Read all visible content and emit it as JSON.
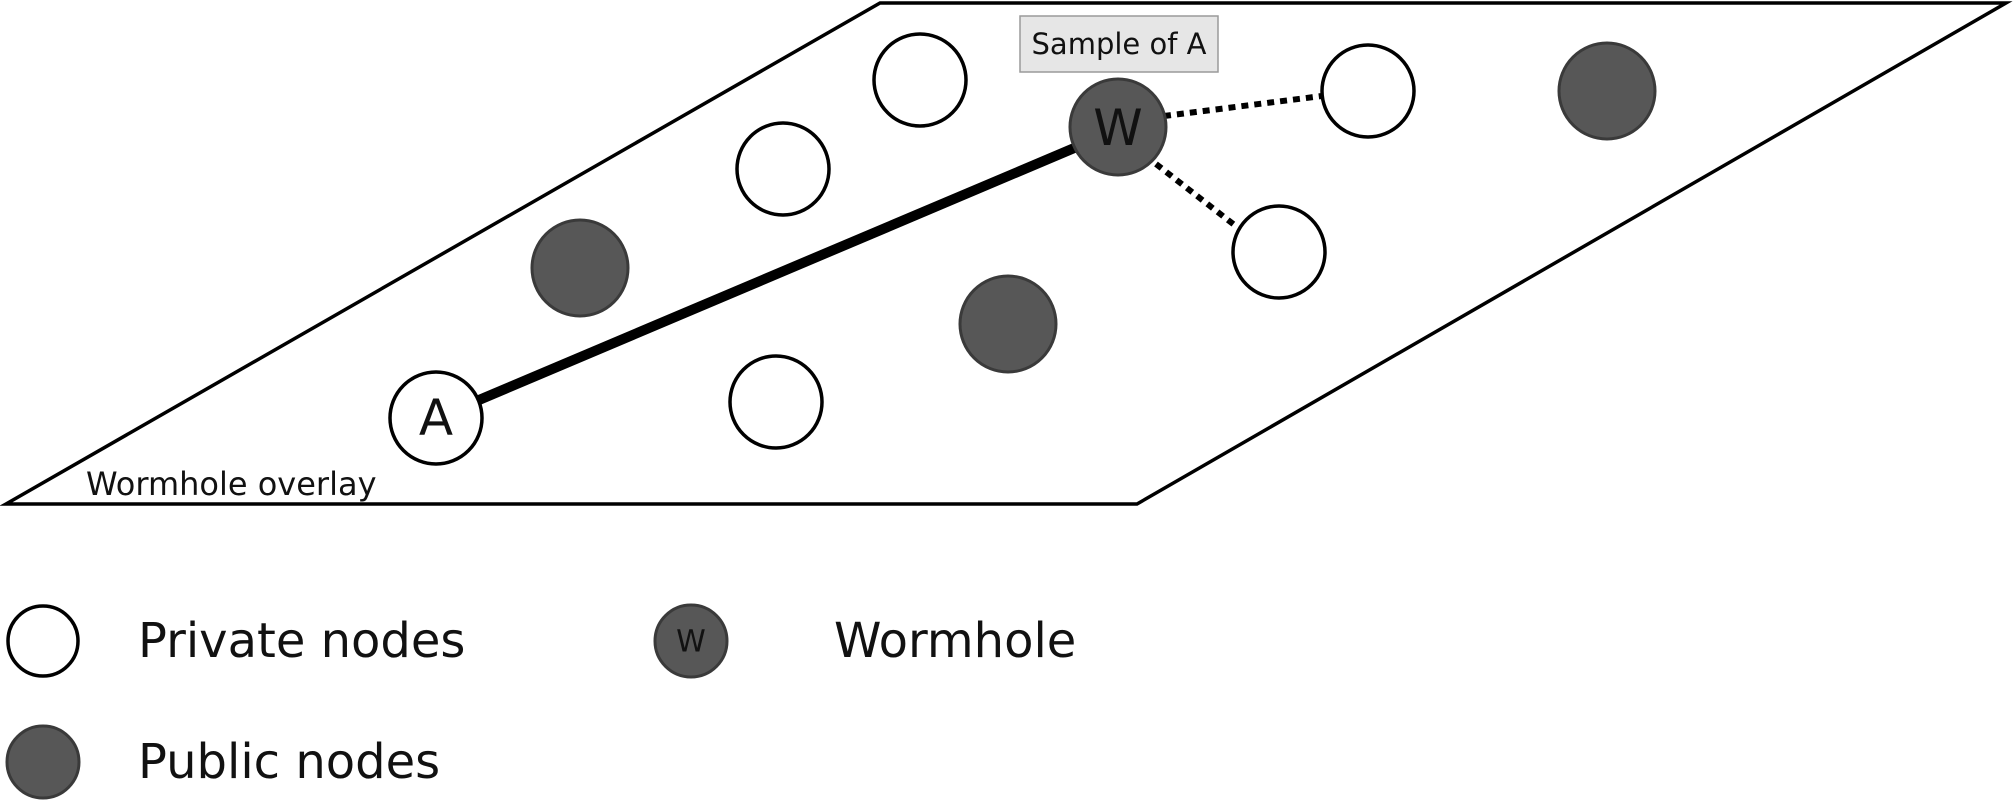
{
  "overlay": {
    "label": "Wormhole overlay"
  },
  "sample_label": "Sample of A",
  "nodes": [
    {
      "id": "a",
      "type": "private",
      "letter": "A"
    },
    {
      "id": "w",
      "type": "wormhole",
      "letter": "W"
    },
    {
      "id": "p1",
      "type": "private",
      "letter": ""
    },
    {
      "id": "p2",
      "type": "private",
      "letter": ""
    },
    {
      "id": "p3",
      "type": "private",
      "letter": ""
    },
    {
      "id": "p4",
      "type": "private",
      "letter": ""
    },
    {
      "id": "p5",
      "type": "private",
      "letter": ""
    },
    {
      "id": "pub1",
      "type": "public",
      "letter": ""
    },
    {
      "id": "pub2",
      "type": "public",
      "letter": ""
    },
    {
      "id": "pub3",
      "type": "public",
      "letter": ""
    }
  ],
  "edges": [
    {
      "from": "a",
      "to": "w",
      "style": "solid"
    },
    {
      "from": "w",
      "to": "p4",
      "style": "dotted"
    },
    {
      "from": "w",
      "to": "p5",
      "style": "dotted"
    }
  ],
  "legend": {
    "private_label": "Private nodes",
    "public_label": "Public nodes",
    "wormhole_label": "Wormhole",
    "wormhole_letter": "W"
  },
  "colors": {
    "public_fill": "#575757",
    "private_fill": "#ffffff",
    "stroke": "#000000"
  }
}
